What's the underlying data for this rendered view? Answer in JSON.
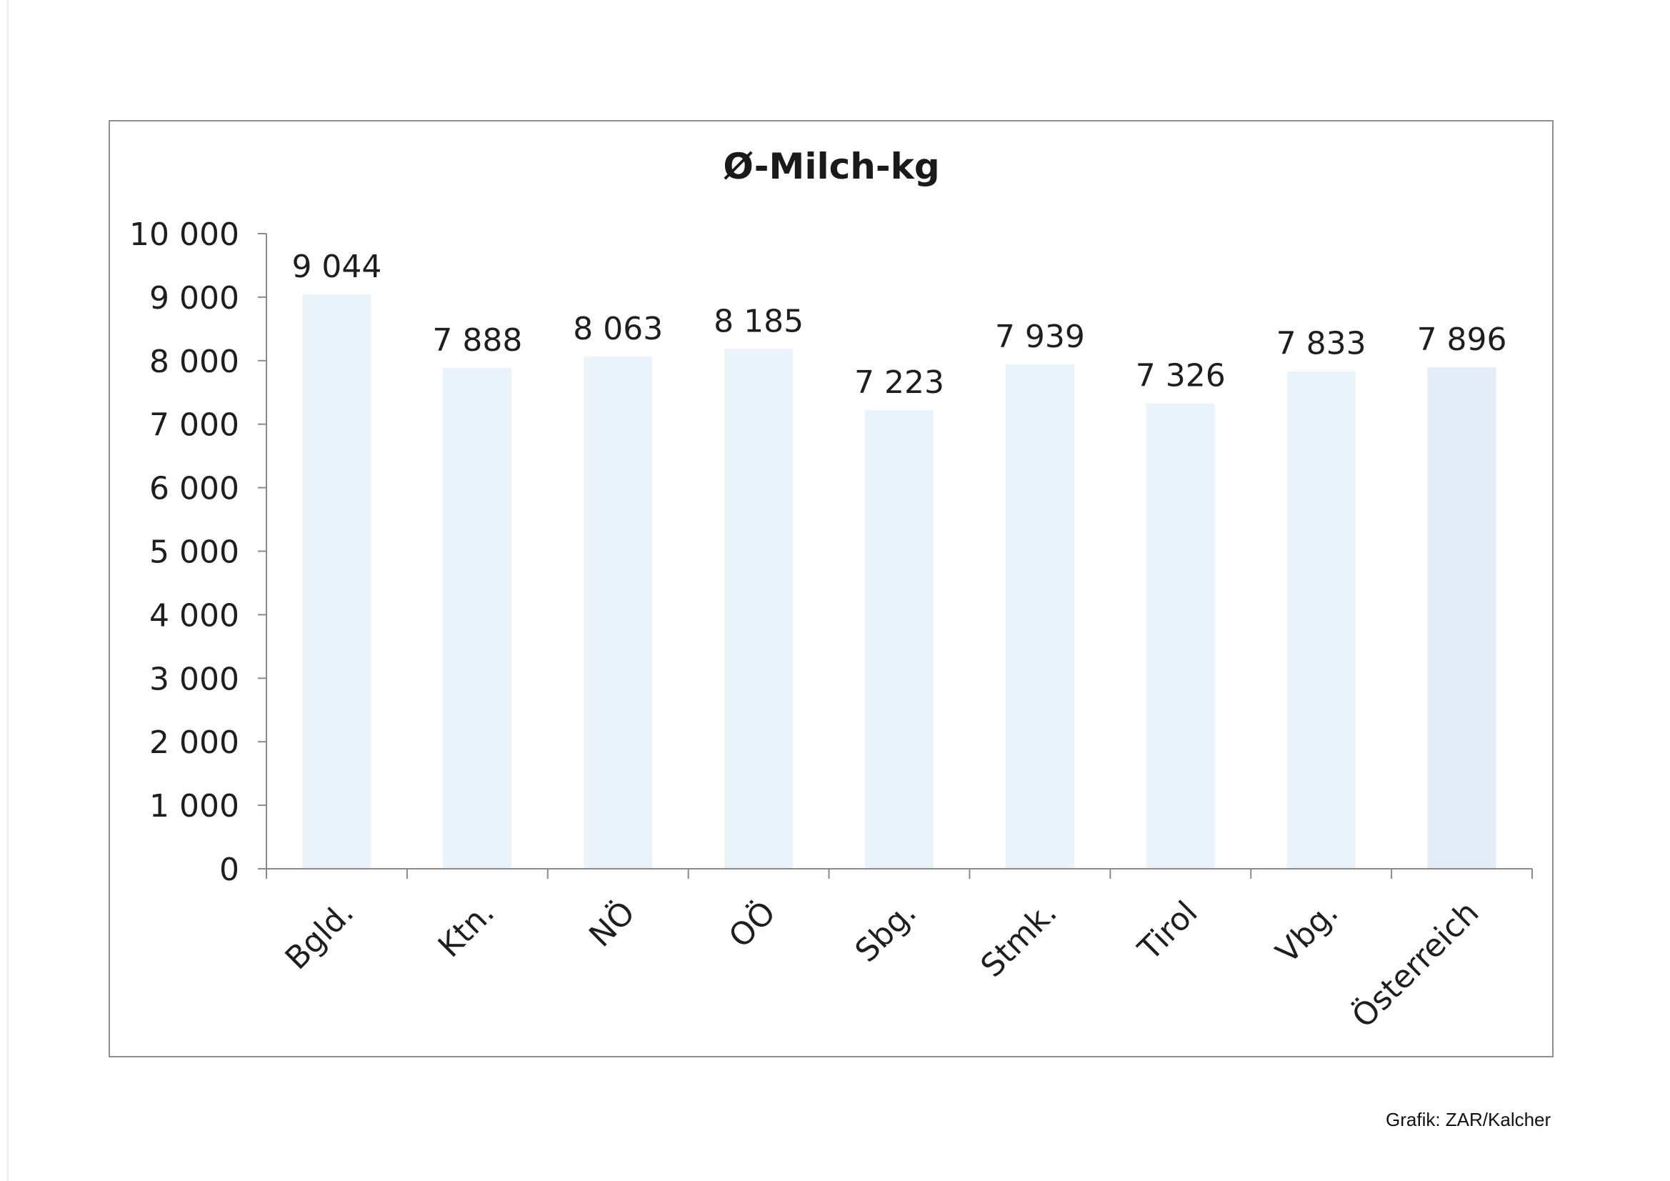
{
  "credit": "Grafik: ZAR/Kalcher",
  "chart_data": {
    "type": "bar",
    "title": "Ø-Milch-kg",
    "xlabel": "",
    "ylabel": "",
    "categories": [
      "Bgld.",
      "Ktn.",
      "NÖ",
      "OÖ",
      "Sbg.",
      "Stmk.",
      "Tirol",
      "Vbg.",
      "Österreich"
    ],
    "values": [
      9044,
      7888,
      8063,
      8185,
      7223,
      7939,
      7326,
      7833,
      7896
    ],
    "data_labels": [
      "9 044",
      "7 888",
      "8 063",
      "8 185",
      "7 223",
      "7 939",
      "7 326",
      "7 833",
      "7 896"
    ],
    "y_ticks": [
      0,
      1000,
      2000,
      3000,
      4000,
      5000,
      6000,
      7000,
      8000,
      9000,
      10000
    ],
    "y_tick_labels": [
      "0",
      "1 000",
      "2 000",
      "3 000",
      "4 000",
      "5 000",
      "6 000",
      "7 000",
      "8 000",
      "9 000",
      "10 000"
    ],
    "ylim": [
      0,
      10000
    ],
    "grid": false,
    "legend": "none",
    "colors": {
      "bar": "#eaf2fa",
      "bar_last": "#e4ecf7",
      "axis": "#8a8a8a",
      "text": "#1e1e1e"
    }
  }
}
